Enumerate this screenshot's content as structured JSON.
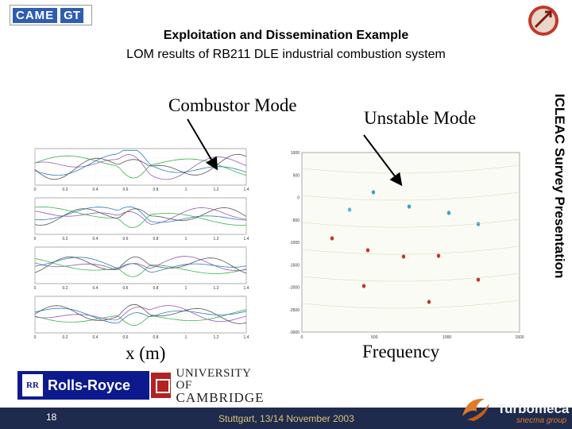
{
  "header": {
    "logo_came": "CAME",
    "logo_gt": "GT",
    "title": "Exploitation and Dissemination Example",
    "subtitle": "LOM results of RB211 DLE industrial combustion system"
  },
  "labels": {
    "combustor_mode": "Combustor Mode",
    "unstable_mode": "Unstable Mode",
    "x_axis": "x (m)",
    "frequency": "Frequency",
    "side": "ICLEAC Survey Presentation"
  },
  "logos": {
    "rolls_royce_badge": "RR",
    "rolls_royce": "Rolls-Royce",
    "cambridge_line1": "UNIVERSITY OF",
    "cambridge_line2": "CAMBRIDGE",
    "turbomeca": "Turbomeca",
    "turbomeca_sub": "snecma group"
  },
  "footer": {
    "page_number": "18",
    "text": "Stuttgart, 13/14 November 2003"
  },
  "chart_data": [
    {
      "type": "line",
      "panels": 4,
      "x_ticks": [
        "0",
        "0.2",
        "0.4",
        "0.6",
        "0.8",
        "1",
        "1.2",
        "1.4"
      ],
      "xlim": [
        0,
        1.4
      ],
      "series_colors": [
        "#3cb44b",
        "#9b59b6",
        "#2c7fb8",
        "#555555"
      ]
    },
    {
      "type": "heatmap",
      "x_ticks": [
        "0",
        "500",
        "1000",
        "1500"
      ],
      "y_ticks": [
        "1000",
        "500",
        "0",
        "-500",
        "-1000",
        "-1500",
        "-2000",
        "-2500",
        "-3000"
      ],
      "xlim": [
        0,
        1500
      ],
      "ylim": [
        -3000,
        1000
      ]
    }
  ],
  "colors": {
    "footer_bar": "#1f2b4d",
    "footer_text": "#d9c27a",
    "rolls_royce_blue": "#0d1a8e",
    "turbomeca_orange": "#e07b2a"
  }
}
